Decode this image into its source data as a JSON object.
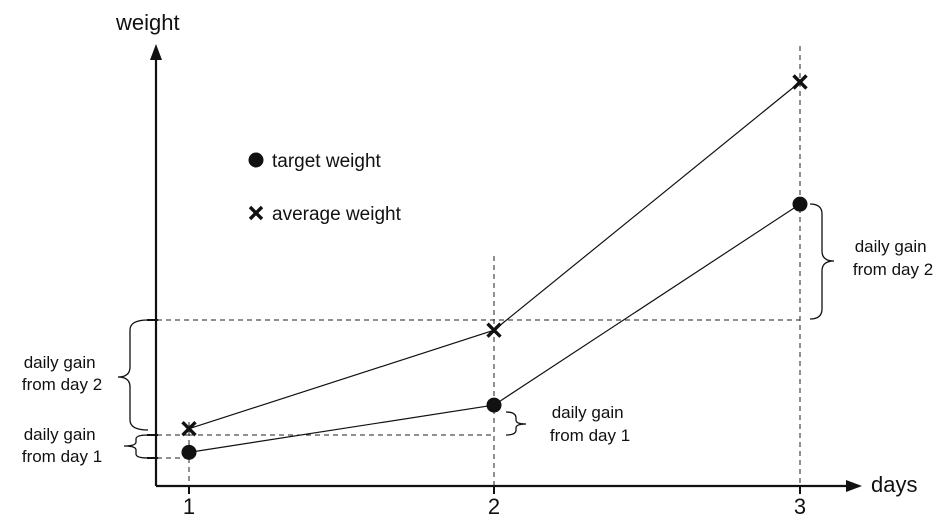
{
  "chart_data": {
    "type": "line",
    "title": "",
    "xlabel": "days",
    "ylabel": "weight",
    "x": [
      1,
      2,
      3
    ],
    "tick_labels": [
      "1",
      "2",
      "3"
    ],
    "ylim": [
      0,
      10
    ],
    "grid": false,
    "legend_position": "top-left",
    "series": [
      {
        "name": "target weight",
        "marker": "circle",
        "values": [
          0.6,
          1.8,
          6.9
        ]
      },
      {
        "name": "average weight",
        "marker": "cross",
        "values": [
          1.2,
          3.7,
          10.0
        ]
      }
    ],
    "annotations": [
      {
        "id": "left_lower",
        "lines": [
          "daily gain",
          "from day 1"
        ]
      },
      {
        "id": "left_upper",
        "lines": [
          "daily gain",
          "from day 2"
        ]
      },
      {
        "id": "mid",
        "lines": [
          "daily gain",
          "from day 1"
        ]
      },
      {
        "id": "right",
        "lines": [
          "daily gain",
          "from day 2"
        ]
      }
    ],
    "colors": {
      "ink": "#111111"
    }
  }
}
